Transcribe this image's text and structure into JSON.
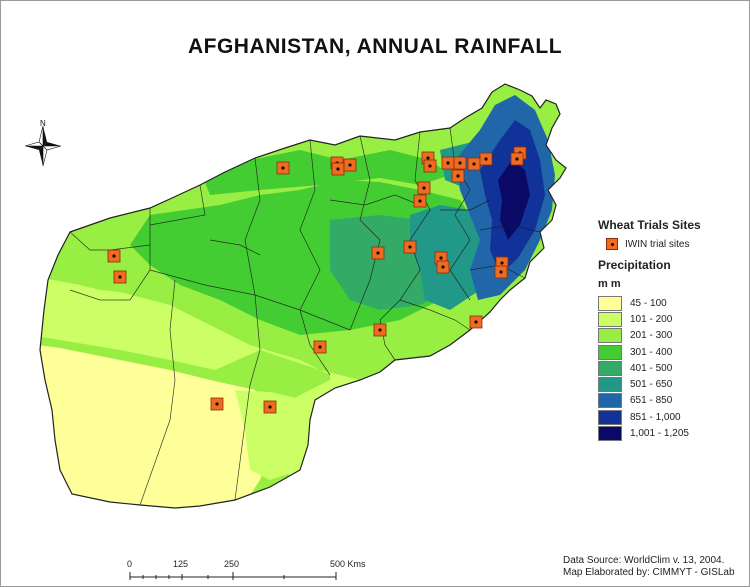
{
  "title": "AFGHANISTAN,  ANNUAL RAINFALL",
  "north_label": "N",
  "legend": {
    "sites_heading": "Wheat Trials Sites",
    "site_label": "IWIN trial sites",
    "precip_heading": "Precipitation",
    "precip_units": "m m",
    "classes": [
      {
        "label": "45 - 100",
        "color": "#ffff99"
      },
      {
        "label": "101 - 200",
        "color": "#ccff66"
      },
      {
        "label": "201 - 300",
        "color": "#99ee44"
      },
      {
        "label": "301 - 400",
        "color": "#44cc33"
      },
      {
        "label": "401 - 500",
        "color": "#33aa66"
      },
      {
        "label": "501 - 650",
        "color": "#229988"
      },
      {
        "label": "651 - 850",
        "color": "#2266aa"
      },
      {
        "label": "851 - 1,000",
        "color": "#113399"
      },
      {
        "label": "1,001 - 1,205",
        "color": "#0a0a66"
      }
    ]
  },
  "scalebar": {
    "ticks": [
      "0",
      "125",
      "250",
      "500 Kms"
    ]
  },
  "credits": {
    "line1": "Data Source: WorldClim v. 13,  2004.",
    "line2": "Map Elaborated by: CIMMYT - GISLab"
  },
  "sites_count": 28
}
